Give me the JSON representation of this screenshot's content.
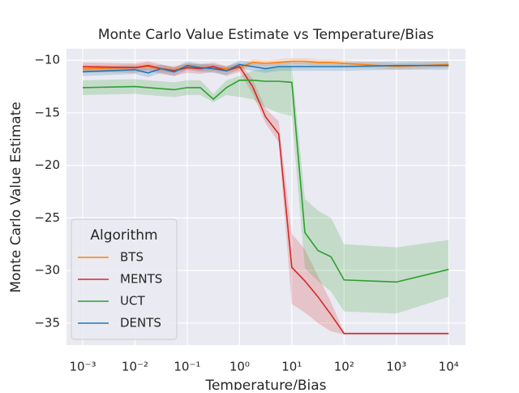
{
  "chart_data": {
    "type": "line",
    "title": "Monte Carlo Value Estimate vs Temperature/Bias",
    "x_label": "Temperature/Bias",
    "y_label": "Monte Carlo Value Estimate",
    "x_scale": "log",
    "x": [
      0.001,
      0.01,
      0.0178,
      0.0316,
      0.0562,
      0.1,
      0.178,
      0.316,
      0.562,
      1,
      1.78,
      3.16,
      5.62,
      10,
      17.8,
      31.6,
      56.2,
      100,
      1000,
      10000
    ],
    "xlim": [
      0.00049,
      21000
    ],
    "xticks": [
      {
        "value": 0.001,
        "label": "10⁻³"
      },
      {
        "value": 0.01,
        "label": "10⁻²"
      },
      {
        "value": 0.1,
        "label": "10⁻¹"
      },
      {
        "value": 1,
        "label": "10⁰"
      },
      {
        "value": 10,
        "label": "10¹"
      },
      {
        "value": 100,
        "label": "10²"
      },
      {
        "value": 1000,
        "label": "10³"
      },
      {
        "value": 10000,
        "label": "10⁴"
      }
    ],
    "ylim": [
      -37.1,
      -8.9
    ],
    "yticks": [
      {
        "value": -10,
        "label": "−10"
      },
      {
        "value": -15,
        "label": "−15"
      },
      {
        "value": -20,
        "label": "−20"
      },
      {
        "value": -25,
        "label": "−25"
      },
      {
        "value": -30,
        "label": "−30"
      },
      {
        "value": -35,
        "label": "−35"
      }
    ],
    "grid": true,
    "legend_title": "Algorithm",
    "legend_position": "lower-left",
    "series": [
      {
        "name": "BTS",
        "color": "#ff7f0e",
        "values": [
          -10.8,
          -10.7,
          -10.6,
          -10.8,
          -10.9,
          -10.6,
          -10.7,
          -10.7,
          -10.8,
          -10.7,
          -10.2,
          -10.3,
          -10.2,
          -10.1,
          -10.1,
          -10.2,
          -10.2,
          -10.3,
          -10.6,
          -10.4
        ],
        "lower": [
          -11.1,
          -11.0,
          -10.9,
          -11.1,
          -11.2,
          -10.9,
          -11.0,
          -11.0,
          -11.1,
          -11.0,
          -10.5,
          -10.6,
          -10.5,
          -10.4,
          -10.4,
          -10.5,
          -10.5,
          -10.6,
          -10.9,
          -10.7
        ],
        "upper": [
          -10.5,
          -10.4,
          -10.3,
          -10.5,
          -10.6,
          -10.3,
          -10.4,
          -10.4,
          -10.5,
          -10.4,
          -9.9,
          -10.0,
          -9.9,
          -9.8,
          -9.8,
          -9.9,
          -9.9,
          -10.0,
          -10.3,
          -10.1
        ]
      },
      {
        "name": "MENTS",
        "color": "#d62728",
        "values": [
          -10.6,
          -10.7,
          -10.5,
          -10.8,
          -11.0,
          -10.7,
          -10.8,
          -10.6,
          -11.0,
          -10.6,
          -12.5,
          -15.4,
          -17.0,
          -29.7,
          -31.0,
          -32.5,
          -34.2,
          -36.0,
          -36.0,
          -36.0
        ],
        "lower": [
          -11.1,
          -11.2,
          -11.0,
          -11.3,
          -11.5,
          -11.2,
          -11.3,
          -11.1,
          -11.5,
          -11.1,
          -13.2,
          -16.0,
          -17.8,
          -33.2,
          -34.0,
          -35.0,
          -35.8,
          -36.1,
          -36.1,
          -36.1
        ],
        "upper": [
          -10.2,
          -10.3,
          -10.1,
          -10.4,
          -10.6,
          -10.3,
          -10.4,
          -10.2,
          -10.6,
          -10.2,
          -11.8,
          -14.6,
          -15.8,
          -26.5,
          -28.0,
          -30.5,
          -33.0,
          -35.9,
          -35.9,
          -35.9
        ]
      },
      {
        "name": "UCT",
        "color": "#2ca02c",
        "values": [
          -12.6,
          -12.5,
          -12.6,
          -12.7,
          -12.8,
          -12.6,
          -12.6,
          -13.7,
          -12.6,
          -11.9,
          -11.9,
          -12.0,
          -12.0,
          -12.1,
          -26.4,
          -28.1,
          -28.7,
          -30.9,
          -31.1,
          -29.9
        ],
        "lower": [
          -13.3,
          -13.2,
          -13.3,
          -13.4,
          -13.5,
          -13.3,
          -13.3,
          -14.0,
          -13.3,
          -13.5,
          -13.7,
          -14.5,
          -15.0,
          -15.3,
          -29.8,
          -31.0,
          -32.0,
          -33.9,
          -34.1,
          -32.5
        ],
        "upper": [
          -11.9,
          -11.8,
          -11.9,
          -12.0,
          -12.1,
          -11.9,
          -11.9,
          -13.2,
          -11.9,
          -11.5,
          -11.0,
          -10.8,
          -10.6,
          -10.5,
          -23.2,
          -24.3,
          -25.0,
          -27.5,
          -27.8,
          -27.1
        ]
      },
      {
        "name": "DENTS",
        "color": "#1f77b4",
        "values": [
          -11.1,
          -10.9,
          -11.2,
          -10.8,
          -11.1,
          -10.5,
          -10.7,
          -10.8,
          -11.0,
          -10.4,
          -10.6,
          -10.8,
          -10.6,
          -10.6,
          -10.6,
          -10.6,
          -10.6,
          -10.6,
          -10.5,
          -10.5
        ],
        "lower": [
          -11.5,
          -11.3,
          -11.6,
          -11.2,
          -11.5,
          -10.9,
          -11.1,
          -11.2,
          -11.4,
          -10.8,
          -11.0,
          -11.2,
          -11.0,
          -11.0,
          -11.0,
          -11.0,
          -11.0,
          -11.0,
          -10.9,
          -10.9
        ],
        "upper": [
          -10.7,
          -10.5,
          -10.8,
          -10.4,
          -10.7,
          -10.1,
          -10.3,
          -10.4,
          -10.6,
          -10.0,
          -10.2,
          -10.4,
          -10.2,
          -10.2,
          -10.2,
          -10.2,
          -10.2,
          -10.2,
          -10.1,
          -10.1
        ]
      }
    ]
  }
}
